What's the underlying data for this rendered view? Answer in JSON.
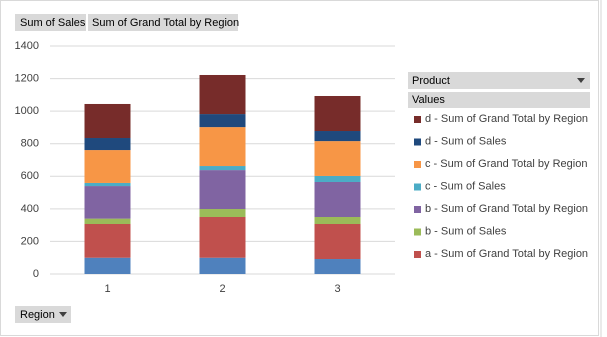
{
  "chart_data": {
    "type": "stacked_bar",
    "field_buttons": [
      "Sum of Sales",
      "Sum of Grand Total by Region"
    ],
    "legend_field": "Product",
    "legend_values_header": "Values",
    "axis_field": "Region",
    "categories": [
      "1",
      "2",
      "3"
    ],
    "series": [
      {
        "color": "#4f81bd",
        "values": [
          100,
          100,
          92
        ]
      },
      {
        "name": "a - Sum of Grand Total by Region",
        "color": "#c0504d",
        "values": [
          207,
          250,
          215
        ]
      },
      {
        "name": "b - Sum of Sales",
        "color": "#9bbb59",
        "values": [
          33,
          49,
          43
        ]
      },
      {
        "name": "b - Sum of Grand Total by Region",
        "color": "#8064a2",
        "values": [
          200,
          239,
          215
        ]
      },
      {
        "name": "c - Sum of Sales",
        "color": "#4bacc6",
        "values": [
          19,
          25,
          37
        ]
      },
      {
        "name": "c - Sum of Grand Total by Region",
        "color": "#f79646",
        "values": [
          202,
          239,
          214
        ]
      },
      {
        "name": "d - Sum of Sales",
        "color": "#1f497d",
        "values": [
          74,
          80,
          62
        ]
      },
      {
        "name": "d - Sum of Grand Total by Region",
        "color": "#772c2a",
        "values": [
          209,
          240,
          215
        ]
      }
    ],
    "ylim": [
      0,
      1400
    ],
    "yticks": [
      0,
      200,
      400,
      600,
      800,
      1000,
      1200,
      1400
    ],
    "grid": true
  }
}
